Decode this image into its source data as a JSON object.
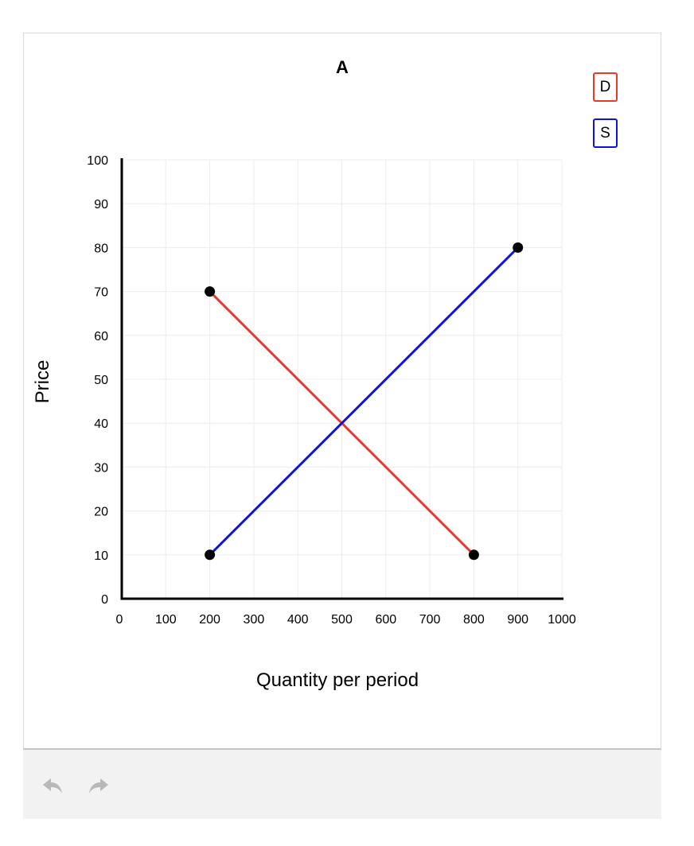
{
  "chart_data": {
    "type": "line",
    "title": "A",
    "xlabel": "Quantity per period",
    "ylabel": "Price",
    "xlim": [
      0,
      1000
    ],
    "ylim": [
      0,
      100
    ],
    "xticks": [
      0,
      100,
      200,
      300,
      400,
      500,
      600,
      700,
      800,
      900,
      1000
    ],
    "yticks": [
      0,
      10,
      20,
      30,
      40,
      50,
      60,
      70,
      80,
      90,
      100
    ],
    "grid": true,
    "legend_placement": "top-right",
    "series": [
      {
        "name": "D",
        "color": "#e8392c",
        "points": [
          [
            200,
            70
          ],
          [
            800,
            10
          ]
        ]
      },
      {
        "name": "S",
        "color": "#1010e0",
        "points": [
          [
            200,
            10
          ],
          [
            900,
            80
          ]
        ]
      }
    ]
  },
  "toolbar": {
    "undo_icon": "undo-icon",
    "redo_icon": "redo-icon"
  }
}
